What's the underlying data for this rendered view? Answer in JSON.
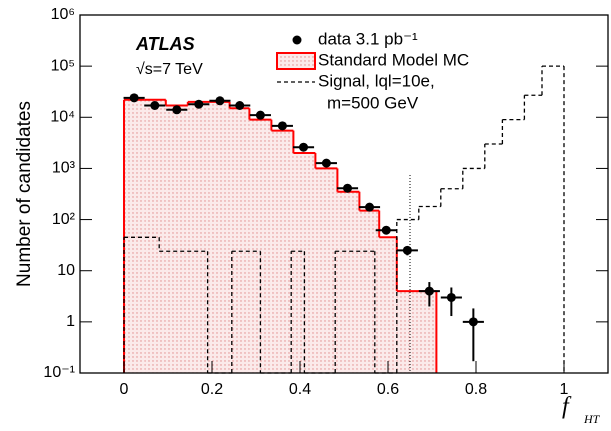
{
  "chart_data": {
    "type": "histogram",
    "ylabel": "Number of candidates",
    "xlabel": "f",
    "xlabel_sub": "HT",
    "annotations": [
      "ATLAS",
      "√s=7 TeV"
    ],
    "log_y": true,
    "xlim": [
      -0.1,
      1.1
    ],
    "ylim": [
      0.1,
      1000000
    ],
    "xticks": [
      0,
      0.2,
      0.4,
      0.6,
      0.8,
      1
    ],
    "yticks": [
      {
        "value": 0.1,
        "label": "10⁻¹"
      },
      1,
      10,
      {
        "value": 100,
        "label": "10²"
      },
      {
        "value": 1000,
        "label": "10³"
      },
      {
        "value": 10000,
        "label": "10⁴"
      },
      {
        "value": 100000,
        "label": "10⁵"
      },
      {
        "value": 1000000,
        "label": "10⁶"
      }
    ],
    "cut_line": 0.65,
    "series": [
      {
        "name": "data 3.1 pb⁻¹",
        "style": "points",
        "color": "#000000",
        "x": [
          0.023,
          0.07,
          0.12,
          0.17,
          0.218,
          0.263,
          0.31,
          0.36,
          0.408,
          0.46,
          0.508,
          0.558,
          0.596,
          0.644,
          0.694,
          0.744,
          0.794
        ],
        "values": [
          24000,
          17000,
          14000,
          18000,
          21000,
          17000,
          11000,
          6800,
          2600,
          1270,
          410,
          175,
          62,
          25,
          4,
          3,
          1
        ],
        "xerr": 0.024,
        "yerr": [
          null,
          null,
          null,
          null,
          null,
          null,
          null,
          null,
          null,
          null,
          null,
          null,
          null,
          5,
          2,
          1.7,
          0.83
        ]
      },
      {
        "name": "Standard Model MC",
        "style": "filled-step",
        "color": "#ff0000",
        "bins": [
          0,
          0.047,
          0.095,
          0.145,
          0.195,
          0.24,
          0.285,
          0.335,
          0.385,
          0.435,
          0.485,
          0.535,
          0.58,
          0.62,
          0.71
        ],
        "values": [
          22000,
          22000,
          17000,
          20000,
          20000,
          15000,
          9000,
          5500,
          2000,
          1000,
          350,
          150,
          45,
          4
        ]
      },
      {
        "name": [
          "Signal, lql=10e,",
          "m=500 GeV"
        ],
        "style": "dashed-step",
        "color": "#000000",
        "bins": [
          0,
          0.08,
          0.19,
          0.245,
          0.31,
          0.38,
          0.41,
          0.48,
          0.57,
          0.62,
          0.67,
          0.72,
          0.77,
          0.82,
          0.86,
          0.91,
          0.95,
          1.0
        ],
        "values": [
          45,
          24,
          0,
          24,
          0,
          24,
          0,
          24,
          0,
          100,
          180,
          400,
          1000,
          3000,
          9000,
          27000,
          100000
        ]
      }
    ]
  }
}
